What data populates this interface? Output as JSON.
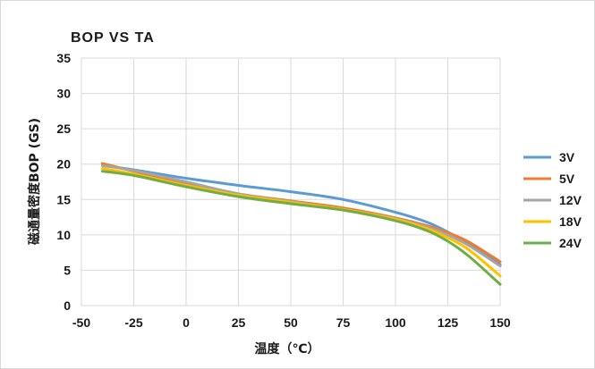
{
  "chart_data": {
    "type": "line",
    "title": "BOP VS TA",
    "xlabel": "温度（℃）",
    "ylabel": "磁通量密度BOP (GS)",
    "xlim": [
      -50,
      150
    ],
    "ylim": [
      0,
      35
    ],
    "x_ticks": [
      "-50",
      "-25",
      "0",
      "25",
      "50",
      "75",
      "100",
      "125",
      "150"
    ],
    "y_ticks": [
      "0",
      "5",
      "10",
      "15",
      "20",
      "25",
      "30",
      "35"
    ],
    "grid": true,
    "legend_position": "right",
    "series": [
      {
        "name": "3V",
        "color": "#5b9bd5",
        "points": [
          [
            -40,
            19.8
          ],
          [
            -25,
            19.2
          ],
          [
            0,
            18.0
          ],
          [
            25,
            17.0
          ],
          [
            50,
            16.1
          ],
          [
            75,
            15.0
          ],
          [
            100,
            13.2
          ],
          [
            115,
            11.8
          ],
          [
            125,
            10.4
          ],
          [
            135,
            8.7
          ],
          [
            150,
            5.8
          ]
        ]
      },
      {
        "name": "5V",
        "color": "#ed7d31",
        "points": [
          [
            -40,
            20.1
          ],
          [
            -25,
            19.0
          ],
          [
            0,
            17.3
          ],
          [
            25,
            15.8
          ],
          [
            50,
            14.8
          ],
          [
            75,
            13.8
          ],
          [
            100,
            12.4
          ],
          [
            115,
            11.3
          ],
          [
            125,
            10.3
          ],
          [
            135,
            9.0
          ],
          [
            150,
            6.2
          ]
        ]
      },
      {
        "name": "12V",
        "color": "#a5a5a5",
        "points": [
          [
            -40,
            19.8
          ],
          [
            -25,
            19.1
          ],
          [
            0,
            17.5
          ],
          [
            25,
            15.8
          ],
          [
            50,
            14.7
          ],
          [
            75,
            13.6
          ],
          [
            100,
            12.3
          ],
          [
            115,
            11.1
          ],
          [
            125,
            10.0
          ],
          [
            135,
            8.5
          ],
          [
            150,
            5.6
          ]
        ]
      },
      {
        "name": "18V",
        "color": "#ffc000",
        "points": [
          [
            -40,
            19.4
          ],
          [
            -25,
            18.6
          ],
          [
            0,
            17.0
          ],
          [
            25,
            15.6
          ],
          [
            50,
            14.6
          ],
          [
            75,
            13.6
          ],
          [
            100,
            12.2
          ],
          [
            115,
            10.9
          ],
          [
            125,
            9.6
          ],
          [
            135,
            7.9
          ],
          [
            150,
            4.2
          ]
        ]
      },
      {
        "name": "24V",
        "color": "#70ad47",
        "points": [
          [
            -40,
            19.0
          ],
          [
            -25,
            18.4
          ],
          [
            0,
            16.8
          ],
          [
            25,
            15.4
          ],
          [
            50,
            14.4
          ],
          [
            75,
            13.5
          ],
          [
            100,
            12.0
          ],
          [
            115,
            10.6
          ],
          [
            125,
            9.1
          ],
          [
            135,
            7.0
          ],
          [
            150,
            3.0
          ]
        ]
      }
    ]
  }
}
